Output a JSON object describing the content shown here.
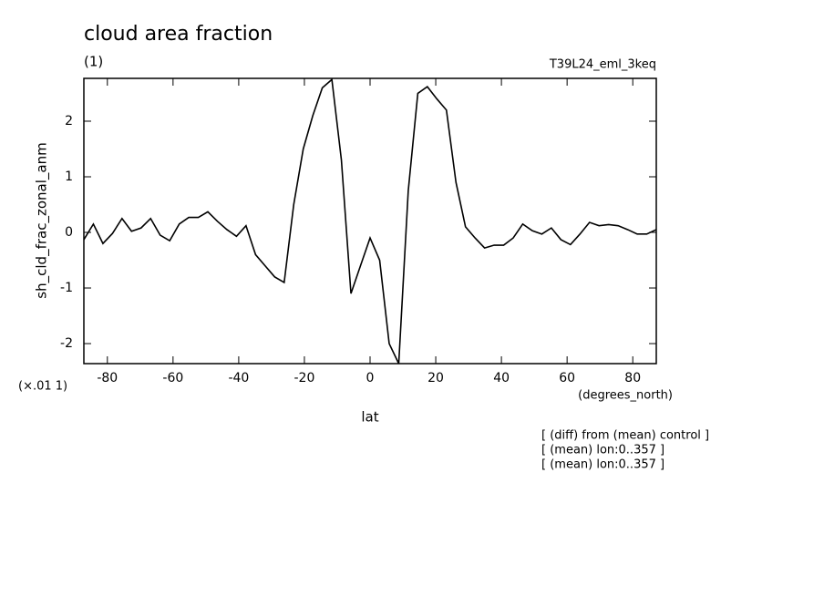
{
  "chart_data": {
    "type": "line",
    "title": "cloud area fraction",
    "subtitle": "(1)",
    "experiment": "T39L24_eml_3keq",
    "y_label": "sh_cld_frac_zonal_anm",
    "y_scale_note": "(×.01 1)",
    "x_units": "(degrees_north)",
    "x_label": "lat",
    "notes": [
      "[ (diff) from (mean) control ]",
      "[ (mean) lon:0..357 ]",
      "[ (mean) lon:0..357 ]"
    ],
    "x": [
      -87.16,
      -84.26,
      -81.35,
      -78.45,
      -75.54,
      -72.64,
      -69.73,
      -66.83,
      -63.92,
      -61.02,
      -58.11,
      -55.21,
      -52.3,
      -49.4,
      -46.49,
      -43.59,
      -40.68,
      -37.78,
      -34.87,
      -31.97,
      -29.06,
      -26.16,
      -23.25,
      -20.35,
      -17.44,
      -14.54,
      -11.63,
      -8.73,
      -5.82,
      -2.92,
      0,
      2.92,
      5.82,
      8.73,
      11.63,
      14.54,
      17.44,
      20.35,
      23.25,
      26.16,
      29.06,
      31.97,
      34.87,
      37.78,
      40.68,
      43.59,
      46.49,
      49.4,
      52.3,
      55.21,
      58.11,
      61.02,
      63.92,
      66.83,
      69.73,
      72.64,
      75.54,
      78.45,
      81.35,
      84.26,
      87.16
    ],
    "series": [
      {
        "color": "#000000",
        "values": [
          -0.13,
          0.15,
          -0.2,
          -0.02,
          0.25,
          0.02,
          0.08,
          0.25,
          -0.05,
          -0.15,
          0.15,
          0.27,
          0.27,
          0.37,
          0.2,
          0.05,
          -0.07,
          0.12,
          -0.4,
          -0.6,
          -0.8,
          -0.9,
          0.5,
          1.5,
          2.1,
          2.6,
          2.75,
          1.3,
          -1.1,
          -0.6,
          -0.1,
          -0.5,
          -2.0,
          -2.36,
          0.75,
          2.5,
          2.62,
          2.4,
          2.2,
          0.9,
          0.1,
          -0.1,
          -0.28,
          -0.23,
          -0.23,
          -0.1,
          0.15,
          0.03,
          -0.03,
          0.08,
          -0.13,
          -0.22,
          -0.03,
          0.18,
          0.12,
          0.14,
          0.12,
          0.05,
          -0.03,
          -0.03,
          0.05
        ]
      }
    ],
    "xlim": [
      -87.16,
      87.16
    ],
    "xticks": [
      -80,
      -60,
      -40,
      -20,
      0,
      20,
      40,
      60,
      80
    ],
    "ylim": [
      -2.36,
      2.77
    ],
    "yticks": [
      -2,
      -1,
      0,
      1,
      2
    ]
  }
}
